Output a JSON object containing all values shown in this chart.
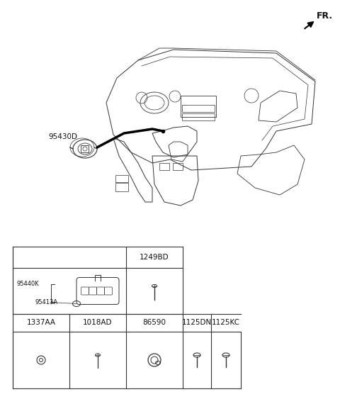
{
  "bg_color": "#ffffff",
  "line_color": "#333333",
  "text_color": "#111111",
  "fr_label": "FR.",
  "part_label_95430D": "95430D",
  "part_label_95440K": "95440K",
  "part_label_95413A": "95413A",
  "header_label": "1249BD",
  "row_labels": [
    "1337AA",
    "1018AD",
    "86590",
    "1125DN",
    "1125KC"
  ],
  "font_size_main": 7.5,
  "font_size_small": 6.5
}
